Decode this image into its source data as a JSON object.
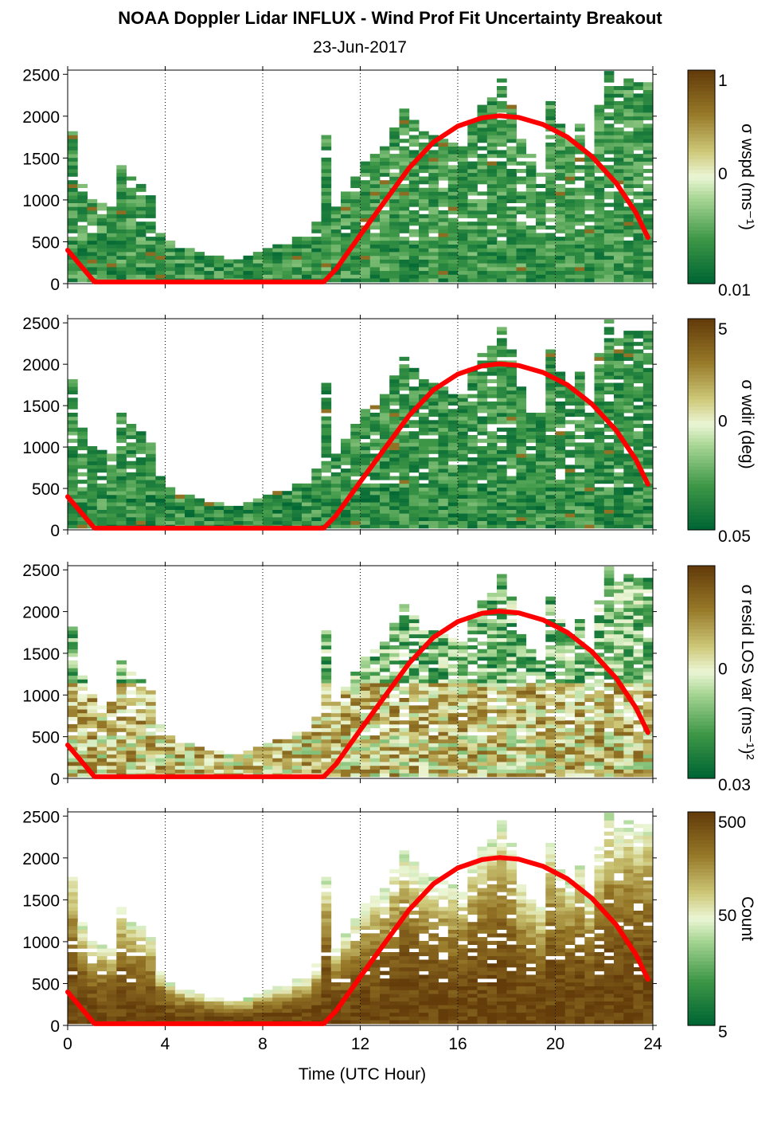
{
  "title": "NOAA Doppler Lidar INFLUX - Wind Prof Fit Uncertainty Breakout",
  "subtitle": "23-Jun-2017",
  "xlabel": "Time (UTC Hour)",
  "chart_data": {
    "type": "heatmap",
    "x_ticks": [
      "0",
      "4",
      "8",
      "12",
      "16",
      "20",
      "24"
    ],
    "x_range": [
      0,
      24
    ],
    "vertical_dotted_lines_at": [
      4,
      8,
      12,
      16,
      20,
      24
    ],
    "y_ticks": [
      "0",
      "500",
      "1000",
      "1500",
      "2000",
      "2500"
    ],
    "y_range": [
      0,
      2550
    ],
    "overlay_line": {
      "color": "#ff0000",
      "points": [
        [
          0,
          400
        ],
        [
          1.1,
          20
        ],
        [
          10.5,
          20
        ],
        [
          11,
          170
        ],
        [
          12,
          580
        ],
        [
          13,
          980
        ],
        [
          14,
          1380
        ],
        [
          15,
          1690
        ],
        [
          16,
          1880
        ],
        [
          17,
          1980
        ],
        [
          17.7,
          2005
        ],
        [
          18.5,
          1985
        ],
        [
          19.5,
          1900
        ],
        [
          20.5,
          1750
        ],
        [
          21.5,
          1520
        ],
        [
          22.5,
          1200
        ],
        [
          23.3,
          850
        ],
        [
          23.8,
          550
        ]
      ]
    },
    "panels": [
      {
        "cbar_label": "σ wspd (ms⁻¹)",
        "cbar_ticks": [
          "1",
          "0",
          "0.01"
        ],
        "colormap": "green-brown",
        "mean_level": 0.18
      },
      {
        "cbar_label": "σ wdir (deg)",
        "cbar_ticks": [
          "5",
          "0",
          "0.05"
        ],
        "colormap": "green-brown",
        "mean_level": 0.16
      },
      {
        "cbar_label": "σ resid LOS var (ms⁻¹)²",
        "cbar_ticks": [
          "",
          "0",
          "0.03"
        ],
        "colormap": "green-brown",
        "mean_level": 0.6
      },
      {
        "cbar_label": "Count",
        "cbar_ticks": [
          "500",
          "50",
          "5"
        ],
        "colormap": "green-brown",
        "mean_level": 0.85
      }
    ],
    "profile_top": [
      {
        "x": 0.0,
        "top": 1800
      },
      {
        "x": 0.4,
        "top": 1200
      },
      {
        "x": 0.8,
        "top": 1000
      },
      {
        "x": 1.2,
        "top": 950
      },
      {
        "x": 1.6,
        "top": 900
      },
      {
        "x": 2.0,
        "top": 1400
      },
      {
        "x": 2.4,
        "top": 1250
      },
      {
        "x": 2.8,
        "top": 1150
      },
      {
        "x": 3.2,
        "top": 1050
      },
      {
        "x": 3.6,
        "top": 650
      },
      {
        "x": 4.0,
        "top": 480
      },
      {
        "x": 4.4,
        "top": 420
      },
      {
        "x": 4.8,
        "top": 390
      },
      {
        "x": 5.2,
        "top": 360
      },
      {
        "x": 5.6,
        "top": 330
      },
      {
        "x": 6.0,
        "top": 310
      },
      {
        "x": 6.4,
        "top": 290
      },
      {
        "x": 6.8,
        "top": 280
      },
      {
        "x": 7.2,
        "top": 300
      },
      {
        "x": 7.6,
        "top": 350
      },
      {
        "x": 8.0,
        "top": 400
      },
      {
        "x": 8.4,
        "top": 430
      },
      {
        "x": 8.8,
        "top": 470
      },
      {
        "x": 9.2,
        "top": 520
      },
      {
        "x": 9.6,
        "top": 560
      },
      {
        "x": 10.0,
        "top": 700
      },
      {
        "x": 10.4,
        "top": 1750
      },
      {
        "x": 10.8,
        "top": 900
      },
      {
        "x": 11.2,
        "top": 1100
      },
      {
        "x": 11.6,
        "top": 1250
      },
      {
        "x": 12.0,
        "top": 1450
      },
      {
        "x": 12.4,
        "top": 1550
      },
      {
        "x": 12.8,
        "top": 1600
      },
      {
        "x": 13.2,
        "top": 1850
      },
      {
        "x": 13.6,
        "top": 2050
      },
      {
        "x": 14.0,
        "top": 1950
      },
      {
        "x": 14.4,
        "top": 1800
      },
      {
        "x": 14.8,
        "top": 1750
      },
      {
        "x": 15.2,
        "top": 1700
      },
      {
        "x": 15.6,
        "top": 1650
      },
      {
        "x": 16.0,
        "top": 1600
      },
      {
        "x": 16.4,
        "top": 1950
      },
      {
        "x": 16.8,
        "top": 2100
      },
      {
        "x": 17.2,
        "top": 2200
      },
      {
        "x": 17.6,
        "top": 2450
      },
      {
        "x": 18.0,
        "top": 2150
      },
      {
        "x": 18.4,
        "top": 1700
      },
      {
        "x": 18.8,
        "top": 1550
      },
      {
        "x": 19.2,
        "top": 1400
      },
      {
        "x": 19.6,
        "top": 2150
      },
      {
        "x": 20.0,
        "top": 1900
      },
      {
        "x": 20.4,
        "top": 1700
      },
      {
        "x": 20.8,
        "top": 1900
      },
      {
        "x": 21.2,
        "top": 1550
      },
      {
        "x": 21.6,
        "top": 2100
      },
      {
        "x": 22.0,
        "top": 2500
      },
      {
        "x": 22.4,
        "top": 2350
      },
      {
        "x": 22.8,
        "top": 2450
      },
      {
        "x": 23.2,
        "top": 2400
      },
      {
        "x": 23.6,
        "top": 2400
      }
    ]
  }
}
